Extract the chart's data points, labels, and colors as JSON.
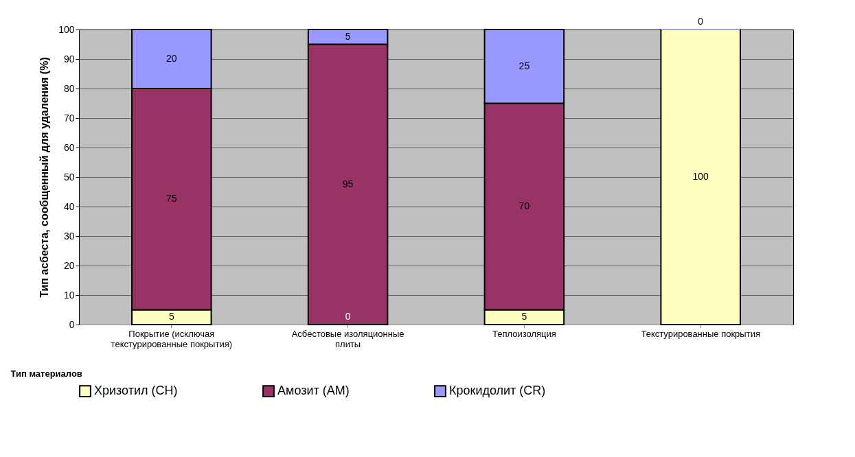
{
  "chart_data": {
    "type": "bar",
    "stacked": true,
    "xlabel": "Тип материалов",
    "ylabel": "Тип асбеста, сообщенный для удаления  (%)",
    "categories": [
      "Покрытие (исключая текстурированные покрытия)",
      "Асбестовые изоляционные плиты",
      "Теплоизоляция",
      "Текстурированные покрытия"
    ],
    "series": [
      {
        "name": "Хризотил (CH)",
        "color": "#ffffc0",
        "values": [
          5,
          0,
          5,
          100
        ],
        "value_labels": [
          "5",
          "0",
          "5",
          "100"
        ]
      },
      {
        "name": "Амозит (AM)",
        "color": "#993366",
        "values": [
          75,
          95,
          70,
          0
        ],
        "value_labels": [
          "75",
          "95",
          "70",
          null
        ]
      },
      {
        "name": "Крокидолит (CR)",
        "color": "#9999ff",
        "values": [
          20,
          5,
          25,
          0
        ],
        "value_labels": [
          "20",
          "5",
          "25",
          "0"
        ]
      }
    ],
    "ylim": [
      0,
      100
    ],
    "yticks": [
      0,
      10,
      20,
      30,
      40,
      50,
      60,
      70,
      80,
      90,
      100
    ],
    "grid": "y",
    "legend": "bottom"
  }
}
